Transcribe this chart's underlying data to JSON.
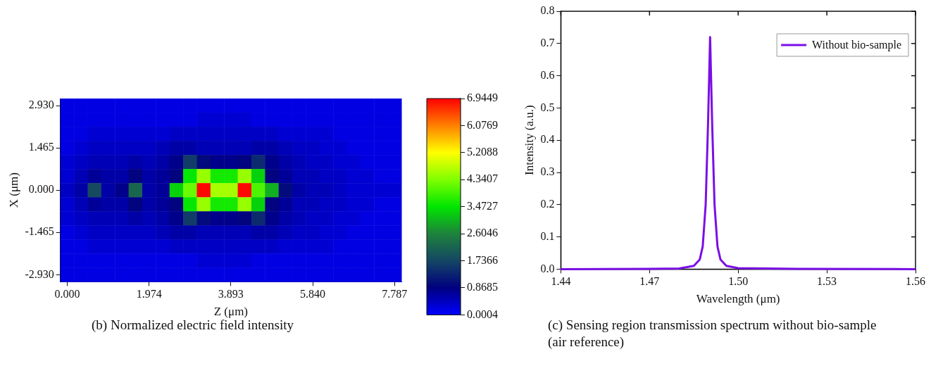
{
  "chart_data": [
    {
      "type": "heatmap",
      "title": "(b) Normalized electric field intensity",
      "xlabel": "Z (μm)",
      "ylabel": "X (μm)",
      "categories": [
        "0.000",
        null,
        null,
        null,
        null,
        null,
        "1.974",
        null,
        null,
        null,
        null,
        null,
        "3.893",
        null,
        null,
        null,
        null,
        null,
        "5.840",
        null,
        null,
        null,
        null,
        null,
        "7.787"
      ],
      "y_categories": [
        "2.930",
        null,
        null,
        "1.465",
        null,
        null,
        "0.000",
        null,
        null,
        "-1.465",
        null,
        null,
        "-2.930"
      ],
      "clim": [
        0.0004,
        6.9449
      ],
      "cticks": [
        {
          "value": 0.0004,
          "label": "0.0004"
        },
        {
          "value": 0.8685,
          "label": "0.8685"
        },
        {
          "value": 1.7366,
          "label": "1.7366"
        },
        {
          "value": 2.6046,
          "label": "2.6046"
        },
        {
          "value": 3.4727,
          "label": "3.4727"
        },
        {
          "value": 4.3407,
          "label": "4.3407"
        },
        {
          "value": 5.2088,
          "label": "5.2088"
        },
        {
          "value": 6.0769,
          "label": "6.0769"
        },
        {
          "value": 6.9449,
          "label": "6.9449"
        }
      ],
      "cells": [
        [
          0.2,
          0.2,
          0.2,
          0.2,
          0.2,
          0.2,
          0.2,
          0.2,
          0.2,
          0.2,
          0.2,
          0.2,
          0.2,
          0.2,
          0.2,
          0.2,
          0.2,
          0.2,
          0.2,
          0.2,
          0.2,
          0.2,
          0.2,
          0.2,
          0.2
        ],
        [
          0.2,
          0.2,
          0.2,
          0.2,
          0.2,
          0.2,
          0.2,
          0.2,
          0.2,
          0.2,
          0.3,
          0.3,
          0.3,
          0.3,
          0.2,
          0.2,
          0.2,
          0.2,
          0.2,
          0.2,
          0.2,
          0.2,
          0.2,
          0.2,
          0.2
        ],
        [
          0.2,
          0.2,
          0.3,
          0.3,
          0.3,
          0.3,
          0.3,
          0.3,
          0.4,
          0.4,
          0.4,
          0.4,
          0.4,
          0.4,
          0.4,
          0.4,
          0.3,
          0.3,
          0.3,
          0.3,
          0.2,
          0.2,
          0.2,
          0.2,
          0.2
        ],
        [
          0.2,
          0.3,
          0.4,
          0.4,
          0.4,
          0.4,
          0.4,
          0.5,
          0.6,
          0.6,
          0.5,
          0.5,
          0.5,
          0.5,
          0.6,
          0.6,
          0.5,
          0.4,
          0.4,
          0.3,
          0.3,
          0.2,
          0.2,
          0.2,
          0.2
        ],
        [
          0.3,
          0.4,
          0.5,
          0.5,
          0.5,
          0.6,
          0.5,
          0.6,
          0.8,
          1.6,
          1.0,
          0.8,
          0.8,
          0.9,
          1.4,
          0.8,
          0.6,
          0.5,
          0.4,
          0.4,
          0.3,
          0.3,
          0.2,
          0.2,
          0.2
        ],
        [
          0.3,
          0.5,
          0.7,
          0.6,
          0.6,
          0.9,
          0.6,
          0.7,
          0.9,
          3.5,
          4.5,
          3.6,
          3.6,
          4.5,
          3.3,
          0.9,
          0.7,
          0.5,
          0.5,
          0.4,
          0.4,
          0.3,
          0.3,
          0.2,
          0.2
        ],
        [
          0.4,
          0.6,
          1.8,
          0.6,
          0.8,
          2.2,
          0.6,
          0.7,
          3.3,
          4.2,
          6.9,
          4.6,
          4.6,
          6.9,
          4.0,
          3.0,
          1.0,
          0.6,
          0.5,
          0.5,
          0.4,
          0.3,
          0.3,
          0.3,
          0.3
        ],
        [
          0.3,
          0.5,
          0.7,
          0.6,
          0.6,
          0.9,
          0.6,
          0.7,
          0.9,
          3.5,
          4.5,
          3.6,
          3.6,
          4.5,
          3.3,
          0.9,
          0.7,
          0.5,
          0.5,
          0.4,
          0.4,
          0.3,
          0.3,
          0.2,
          0.2
        ],
        [
          0.3,
          0.4,
          0.5,
          0.5,
          0.5,
          0.6,
          0.5,
          0.6,
          0.8,
          1.6,
          1.0,
          0.8,
          0.8,
          0.9,
          1.4,
          0.8,
          0.6,
          0.5,
          0.4,
          0.4,
          0.3,
          0.3,
          0.2,
          0.2,
          0.2
        ],
        [
          0.2,
          0.3,
          0.4,
          0.4,
          0.4,
          0.4,
          0.4,
          0.5,
          0.6,
          0.6,
          0.5,
          0.5,
          0.5,
          0.5,
          0.6,
          0.6,
          0.5,
          0.4,
          0.4,
          0.3,
          0.3,
          0.2,
          0.2,
          0.2,
          0.2
        ],
        [
          0.2,
          0.2,
          0.3,
          0.3,
          0.3,
          0.3,
          0.3,
          0.3,
          0.4,
          0.4,
          0.4,
          0.4,
          0.4,
          0.4,
          0.4,
          0.4,
          0.3,
          0.3,
          0.3,
          0.3,
          0.2,
          0.2,
          0.2,
          0.2,
          0.2
        ],
        [
          0.2,
          0.2,
          0.2,
          0.2,
          0.2,
          0.2,
          0.2,
          0.2,
          0.2,
          0.2,
          0.3,
          0.3,
          0.3,
          0.3,
          0.2,
          0.2,
          0.2,
          0.2,
          0.2,
          0.2,
          0.2,
          0.2,
          0.2,
          0.2,
          0.2
        ],
        [
          0.2,
          0.2,
          0.2,
          0.2,
          0.2,
          0.2,
          0.2,
          0.2,
          0.2,
          0.2,
          0.2,
          0.2,
          0.2,
          0.2,
          0.2,
          0.2,
          0.2,
          0.2,
          0.2,
          0.2,
          0.2,
          0.2,
          0.2,
          0.2,
          0.2
        ]
      ]
    },
    {
      "type": "line",
      "title": "(c) Sensing region transmission spectrum without bio-sample (air reference)",
      "xlabel": "Wavelength (μm)",
      "ylabel": "Intensity (a.u.)",
      "xlim": [
        1.44,
        1.56
      ],
      "xticks": [
        1.44,
        1.47,
        {
          "value": 1.5,
          "label": "1.50"
        },
        1.53,
        1.56
      ],
      "ylim": [
        0,
        0.8
      ],
      "yticks": [
        {
          "value": 0,
          "label": "0.0"
        },
        0.1,
        0.2,
        0.3,
        0.4,
        0.5,
        0.6,
        0.7,
        0.8
      ],
      "legend": "top right",
      "series": [
        {
          "name": "Without bio-sample",
          "color": "#7a0fe6",
          "x": [
            1.44,
            1.47,
            1.48,
            1.485,
            1.487,
            1.488,
            1.489,
            1.4898,
            1.4905,
            1.4912,
            1.492,
            1.493,
            1.494,
            1.496,
            1.5,
            1.52,
            1.56
          ],
          "values": [
            0,
            0.001,
            0.002,
            0.01,
            0.03,
            0.07,
            0.2,
            0.45,
            0.72,
            0.45,
            0.2,
            0.07,
            0.03,
            0.01,
            0.003,
            0.001,
            0
          ]
        }
      ]
    }
  ]
}
